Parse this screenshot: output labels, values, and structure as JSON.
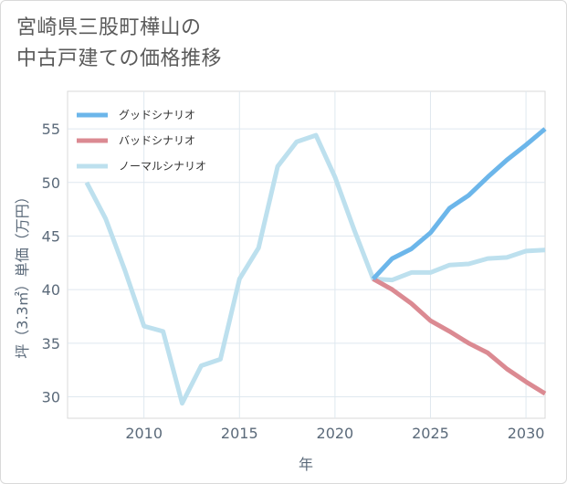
{
  "title": {
    "line1": "宮崎県三股町樺山の",
    "line2": "中古戸建ての価格推移"
  },
  "chart_data": {
    "type": "line",
    "xlabel": "年",
    "ylabel": "坪（3.3㎡）単価（万円）",
    "xlim": [
      2006,
      2031
    ],
    "ylim": [
      28,
      58.5
    ],
    "xticks": [
      2010,
      2015,
      2020,
      2025,
      2030
    ],
    "yticks": [
      30,
      35,
      40,
      45,
      50,
      55
    ],
    "grid": true,
    "legend_position": "top-left",
    "series": [
      {
        "name": "グッドシナリオ",
        "color": "#6cb6ea",
        "x": [
          2022,
          2023,
          2024,
          2025,
          2026,
          2027,
          2028,
          2029,
          2030,
          2031
        ],
        "y": [
          41.0,
          42.9,
          43.8,
          45.3,
          47.6,
          48.8,
          50.5,
          52.1,
          53.5,
          55.0
        ]
      },
      {
        "name": "バッドシナリオ",
        "color": "#db8a92",
        "x": [
          2022,
          2023,
          2024,
          2025,
          2026,
          2027,
          2028,
          2029,
          2030,
          2031
        ],
        "y": [
          41.0,
          40.0,
          38.7,
          37.1,
          36.1,
          35.0,
          34.1,
          32.6,
          31.4,
          30.3
        ]
      },
      {
        "name": "ノーマルシナリオ",
        "color": "#bde0ee",
        "x": [
          2007,
          2008,
          2009,
          2010,
          2011,
          2012,
          2013,
          2014,
          2015,
          2016,
          2017,
          2018,
          2019,
          2020,
          2021,
          2022,
          2023,
          2024,
          2025,
          2026,
          2027,
          2028,
          2029,
          2030,
          2031
        ],
        "y": [
          50.0,
          46.6,
          41.8,
          36.6,
          36.1,
          29.4,
          32.9,
          33.5,
          41.0,
          43.9,
          51.5,
          53.8,
          54.4,
          50.5,
          45.6,
          41.0,
          40.9,
          41.6,
          41.6,
          42.3,
          42.4,
          42.9,
          43.0,
          43.6,
          43.7
        ]
      }
    ]
  }
}
